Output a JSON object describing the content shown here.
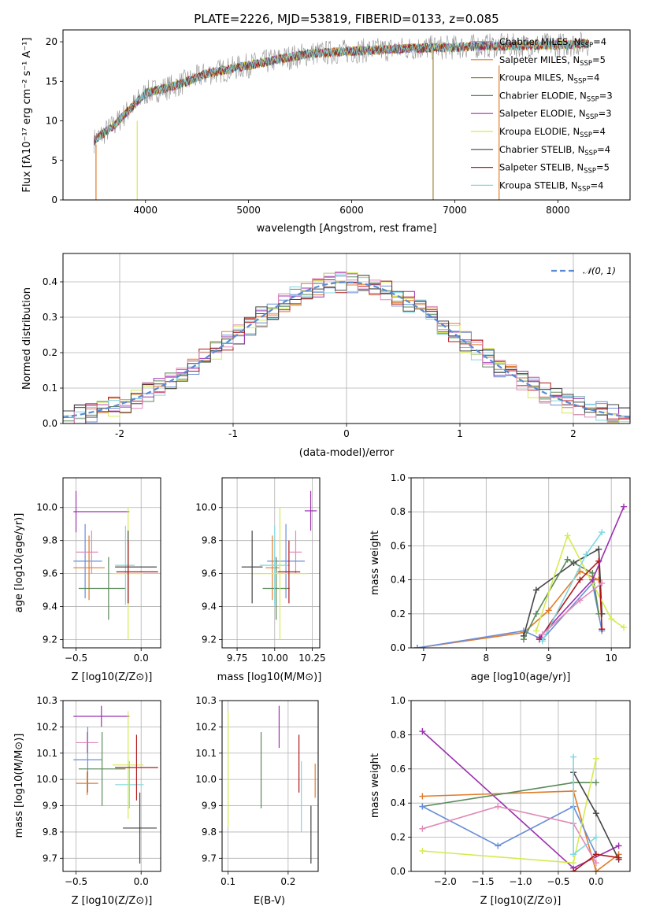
{
  "figure": {
    "title": "PLATE=2226, MJD=53819, FIBERID=0133, z=0.085"
  },
  "colors": {
    "Chabrier MILES": "#6a8fd8",
    "Salpeter MILES": "#e07b2a",
    "Kroupa MILES": "#a08a3a",
    "Chabrier ELODIE": "#5a8a5a",
    "Salpeter ELODIE": "#9b30b0",
    "Kroupa ELODIE": "#d6ea50",
    "Chabrier STELIB": "#444444",
    "Salpeter STELIB": "#b01818",
    "Kroupa STELIB": "#80d8e0",
    "pink": "#e08ab8",
    "normal": "#5a8ad6"
  },
  "chart_data": [
    {
      "id": "spectrum",
      "type": "line",
      "xlabel": "wavelength [Angstrom, rest frame]",
      "ylabel": "Flux [fλ10⁻¹⁷ erg cm⁻² s⁻¹ A⁻¹]",
      "xlim": [
        3200,
        8700
      ],
      "ylim": [
        0,
        21.5
      ],
      "xticks": [
        4000,
        5000,
        6000,
        7000,
        8000
      ],
      "yticks": [
        0,
        5,
        10,
        15,
        20
      ],
      "continuum": {
        "x": [
          3500,
          3700,
          4000,
          4300,
          4600,
          5000,
          5300,
          5600,
          6000,
          6300,
          6600,
          7000,
          7300,
          7600,
          8000,
          8300
        ],
        "y": [
          7.5,
          9.5,
          13.5,
          14.5,
          16.0,
          17.0,
          17.8,
          18.5,
          18.8,
          19.0,
          19.2,
          19.3,
          19.5,
          19.5,
          19.6,
          19.8
        ]
      },
      "legend": [
        {
          "label": "Chabrier MILES, N",
          "sub": "SSP",
          "tail": "=4",
          "color": "#6a8fd8"
        },
        {
          "label": "Salpeter MILES, N",
          "sub": "SSP",
          "tail": "=5",
          "color": "#e07b2a"
        },
        {
          "label": "Kroupa MILES, N",
          "sub": "SSP",
          "tail": "=4",
          "color": "#a08a3a"
        },
        {
          "label": "Chabrier ELODIE, N",
          "sub": "SSP",
          "tail": "=3",
          "color": "#5a8a5a"
        },
        {
          "label": "Salpeter ELODIE, N",
          "sub": "SSP",
          "tail": "=3",
          "color": "#9b30b0"
        },
        {
          "label": "Kroupa ELODIE, N",
          "sub": "SSP",
          "tail": "=4",
          "color": "#d6ea50"
        },
        {
          "label": "Chabrier STELIB, N",
          "sub": "SSP",
          "tail": "=4",
          "color": "#444444"
        },
        {
          "label": "Salpeter STELIB, N",
          "sub": "SSP",
          "tail": "=5",
          "color": "#b01818"
        },
        {
          "label": "Kroupa STELIB, N",
          "sub": "SSP",
          "tail": "=4",
          "color": "#80d8e0"
        }
      ],
      "spikes": [
        {
          "x": 3520,
          "y0": 0,
          "y1": 7,
          "color": "#e07b2a"
        },
        {
          "x": 3920,
          "y0": 0,
          "y1": 10,
          "color": "#d6ea50"
        },
        {
          "x": 6790,
          "y0": 0,
          "y1": 19,
          "color": "#a08a3a"
        },
        {
          "x": 7430,
          "y0": 0,
          "y1": 17,
          "color": "#e07b2a"
        }
      ]
    },
    {
      "id": "residuals",
      "type": "histogram",
      "xlabel": "(data-model)/error",
      "ylabel": "Normed distribution",
      "xlim": [
        -2.5,
        2.5
      ],
      "ylim": [
        0,
        0.48
      ],
      "xticks": [
        -2,
        -1,
        0,
        1,
        2
      ],
      "yticks": [
        0.0,
        0.1,
        0.2,
        0.3,
        0.4
      ],
      "legend_label": "𝒩(0, 1)",
      "grid": true
    },
    {
      "id": "age_vs_Z",
      "type": "errorbar",
      "xlabel": "Z [log10(Z/Z⊙)]",
      "ylabel": "age  [log10(age/yr)]",
      "xlim": [
        -0.6,
        0.15
      ],
      "ylim": [
        9.15,
        10.18
      ],
      "xticks": [
        -0.5,
        0.0
      ],
      "xtick_labels": [
        "−0.5",
        "0.0"
      ],
      "yticks": [
        9.2,
        9.4,
        9.6,
        9.8,
        10.0
      ],
      "points": [
        {
          "x": -0.3,
          "y": 9.1,
          "c": "#9b30b0",
          "xe": [
            -0.52,
            -0.09
          ],
          "ye": [
            9.1,
            9.1
          ],
          "ex": 0,
          "ey": 0
        },
        {
          "x": -0.5,
          "y": 10.1,
          "c": "#9b30b0",
          "xe": [
            -0.52,
            -0.09
          ],
          "ye": [
            9.85,
            10.1
          ]
        },
        {
          "x": -0.43,
          "y": 9.75,
          "c": "#6a8fd8",
          "xe": [
            -0.52,
            -0.3
          ],
          "ye": [
            9.45,
            9.9
          ]
        },
        {
          "x": -0.38,
          "y": 9.68,
          "c": "#e08ab8",
          "xe": [
            -0.5,
            -0.33
          ],
          "ye": [
            9.6,
            9.86
          ]
        },
        {
          "x": -0.4,
          "y": 9.56,
          "c": "#e07b2a",
          "xe": [
            -0.52,
            -0.28
          ],
          "ye": [
            9.44,
            9.83
          ]
        },
        {
          "x": -0.25,
          "y": 9.54,
          "c": "#5a8a5a",
          "xe": [
            -0.48,
            -0.12
          ],
          "ye": [
            9.32,
            9.7
          ]
        },
        {
          "x": -0.12,
          "y": 9.61,
          "c": "#80d8e0",
          "xe": [
            -0.2,
            -0.05
          ],
          "ye": [
            9.41,
            9.89
          ]
        },
        {
          "x": -0.1,
          "y": 9.7,
          "c": "#d6ea50",
          "xe": [
            -0.22,
            0.02
          ],
          "ye": [
            9.2,
            10.0
          ]
        },
        {
          "x": -0.1,
          "y": 9.57,
          "c": "#444444",
          "xe": [
            -0.2,
            0.12
          ],
          "ye": [
            9.42,
            9.86
          ]
        },
        {
          "x": -0.1,
          "y": 9.61,
          "c": "#b01818",
          "xe": [
            -0.19,
            0.13
          ],
          "ye": [
            9.42,
            9.8
          ]
        }
      ]
    },
    {
      "id": "age_vs_mass",
      "type": "errorbar",
      "xlabel": "mass [log10(M/M⊙)]",
      "xlim": [
        9.65,
        10.3
      ],
      "ylim": [
        9.15,
        10.18
      ],
      "xticks": [
        9.75,
        10.0,
        10.25
      ],
      "xtick_labels": [
        "9.75",
        "10.00",
        "10.25"
      ],
      "yticks": [
        9.2,
        9.4,
        9.6,
        9.8,
        10.0
      ],
      "points": [
        {
          "c": "#9b30b0",
          "xe": [
            10.2,
            10.28
          ],
          "ye": [
            9.86,
            10.1
          ]
        },
        {
          "c": "#e08ab8",
          "xe": [
            10.1,
            10.18
          ],
          "ye": [
            9.6,
            9.86
          ]
        },
        {
          "c": "#6a8fd8",
          "xe": [
            9.95,
            10.2
          ],
          "ye": [
            9.45,
            9.9
          ]
        },
        {
          "c": "#e07b2a",
          "xe": [
            9.94,
            10.03
          ],
          "ye": [
            9.44,
            9.83
          ]
        },
        {
          "c": "#5a8a5a",
          "xe": [
            9.92,
            10.1
          ],
          "ye": [
            9.32,
            9.7
          ]
        },
        {
          "c": "#80d8e0",
          "xe": [
            9.9,
            10.1
          ],
          "ye": [
            9.41,
            9.89
          ]
        },
        {
          "c": "#d6ea50",
          "xe": [
            9.85,
            10.22
          ],
          "ye": [
            9.2,
            10.0
          ]
        },
        {
          "c": "#444444",
          "xe": [
            9.78,
            9.92
          ],
          "ye": [
            9.42,
            9.86
          ]
        },
        {
          "c": "#b01818",
          "xe": [
            10.02,
            10.17
          ],
          "ye": [
            9.42,
            9.8
          ]
        }
      ]
    },
    {
      "id": "weight_vs_age",
      "type": "line",
      "xlabel": "age  [log10(age/yr)]",
      "ylabel": "mass weight",
      "xlim": [
        6.8,
        10.3
      ],
      "ylim": [
        0,
        1.0
      ],
      "xticks": [
        7,
        8,
        9,
        10
      ],
      "yticks": [
        0.0,
        0.2,
        0.4,
        0.6,
        0.8,
        1.0
      ],
      "series": [
        {
          "c": "#e07b2a",
          "x": [
            6.9,
            8.6,
            9.0,
            9.5,
            9.8
          ],
          "y": [
            0.0,
            0.09,
            0.22,
            0.45,
            0.4
          ]
        },
        {
          "c": "#6a8fd8",
          "x": [
            6.9,
            8.6,
            8.9,
            9.7,
            9.85
          ],
          "y": [
            0.0,
            0.1,
            0.05,
            0.38,
            0.1
          ]
        },
        {
          "c": "#444444",
          "x": [
            8.6,
            8.8,
            9.4,
            9.8,
            9.85
          ],
          "y": [
            0.07,
            0.34,
            0.5,
            0.58,
            0.2
          ]
        },
        {
          "c": "#5a8a5a",
          "x": [
            8.6,
            8.8,
            9.3,
            9.7,
            9.8
          ],
          "y": [
            0.05,
            0.2,
            0.52,
            0.44,
            0.2
          ]
        },
        {
          "c": "#d6ea50",
          "x": [
            8.8,
            9.3,
            9.7,
            10.0,
            10.2
          ],
          "y": [
            0.1,
            0.66,
            0.38,
            0.17,
            0.12
          ]
        },
        {
          "c": "#b01818",
          "x": [
            8.85,
            9.5,
            9.8,
            9.85
          ],
          "y": [
            0.05,
            0.4,
            0.51,
            0.11
          ]
        },
        {
          "c": "#9b30b0",
          "x": [
            8.85,
            9.7,
            10.2
          ],
          "y": [
            0.06,
            0.4,
            0.83
          ]
        },
        {
          "c": "#80d8e0",
          "x": [
            8.9,
            9.6,
            9.85
          ],
          "y": [
            0.04,
            0.55,
            0.68
          ]
        },
        {
          "c": "#e08ab8",
          "x": [
            8.9,
            9.5,
            9.85
          ],
          "y": [
            0.08,
            0.28,
            0.38
          ]
        }
      ]
    },
    {
      "id": "mass_vs_Z",
      "type": "errorbar",
      "xlabel": "Z [log10(Z/Z⊙)]",
      "ylabel": "mass [log10(M/M⊙)]",
      "xlim": [
        -0.6,
        0.15
      ],
      "ylim": [
        9.65,
        10.3
      ],
      "xticks": [
        -0.5,
        0.0
      ],
      "xtick_labels": [
        "−0.5",
        "0.0"
      ],
      "yticks": [
        9.7,
        9.8,
        9.9,
        10.0,
        10.1,
        10.2,
        10.3
      ],
      "points": [
        {
          "c": "#9b30b0",
          "xe": [
            -0.52,
            -0.09
          ],
          "ye": [
            10.2,
            10.28
          ]
        },
        {
          "c": "#e08ab8",
          "xe": [
            -0.5,
            -0.33
          ],
          "ye": [
            10.1,
            10.18
          ]
        },
        {
          "c": "#6a8fd8",
          "xe": [
            -0.52,
            -0.3
          ],
          "ye": [
            9.95,
            10.2
          ]
        },
        {
          "c": "#e07b2a",
          "xe": [
            -0.5,
            -0.33
          ],
          "ye": [
            9.94,
            10.03
          ]
        },
        {
          "c": "#5a8a5a",
          "xe": [
            -0.48,
            -0.12
          ],
          "ye": [
            9.9,
            10.18
          ]
        },
        {
          "c": "#80d8e0",
          "xe": [
            -0.2,
            0.02
          ],
          "ye": [
            9.89,
            10.07
          ]
        },
        {
          "c": "#d6ea50",
          "xe": [
            -0.22,
            0.02
          ],
          "ye": [
            9.85,
            10.26
          ]
        },
        {
          "c": "#444444",
          "xe": [
            -0.14,
            0.12
          ],
          "ye": [
            9.68,
            9.95
          ]
        },
        {
          "c": "#b01818",
          "xe": [
            -0.2,
            0.13
          ],
          "ye": [
            9.92,
            10.17
          ]
        }
      ]
    },
    {
      "id": "mass_vs_ebv",
      "type": "errorbar",
      "xlabel": "E(B-V)",
      "xlim": [
        0.09,
        0.25
      ],
      "ylim": [
        9.65,
        10.3
      ],
      "xticks": [
        0.1,
        0.2
      ],
      "xtick_labels": [
        "0.1",
        "0.2"
      ],
      "yticks": [
        9.7,
        9.8,
        9.9,
        10.0,
        10.1,
        10.2,
        10.3
      ],
      "points": [
        {
          "c": "#d6ea50",
          "x": 0.1,
          "ye": [
            9.82,
            10.26
          ]
        },
        {
          "c": "#5a8a5a",
          "x": 0.155,
          "ye": [
            9.89,
            10.18
          ]
        },
        {
          "c": "#9b30b0",
          "x": 0.185,
          "ye": [
            10.12,
            10.28
          ]
        },
        {
          "c": "#b01818",
          "x": 0.218,
          "ye": [
            9.95,
            10.17
          ]
        },
        {
          "c": "#80d8e0",
          "x": 0.222,
          "ye": [
            9.8,
            10.07
          ]
        },
        {
          "c": "#444444",
          "x": 0.238,
          "ye": [
            9.68,
            9.9
          ]
        },
        {
          "c": "#e07b2a",
          "x": 0.245,
          "ye": [
            9.93,
            10.06
          ]
        }
      ]
    },
    {
      "id": "weight_vs_Z",
      "type": "line",
      "xlabel": "Z [log10(Z/Z⊙)]",
      "ylabel": "mass weight",
      "xlim": [
        -2.45,
        0.45
      ],
      "ylim": [
        0,
        1.0
      ],
      "xticks": [
        -2.0,
        -1.5,
        -1.0,
        -0.5,
        0.0
      ],
      "xtick_labels": [
        "−2.0",
        "−1.5",
        "−1.0",
        "−0.5",
        "0.0"
      ],
      "yticks": [
        0.0,
        0.2,
        0.4,
        0.6,
        0.8,
        1.0
      ],
      "series": [
        {
          "c": "#9b30b0",
          "x": [
            -2.3,
            -0.3,
            0.3
          ],
          "y": [
            0.82,
            0.02,
            0.15
          ]
        },
        {
          "c": "#e07b2a",
          "x": [
            -2.3,
            -0.3,
            0.0,
            0.3
          ],
          "y": [
            0.44,
            0.47,
            0.0,
            0.1
          ]
        },
        {
          "c": "#5a8a5a",
          "x": [
            -2.3,
            -0.3,
            0.0
          ],
          "y": [
            0.38,
            0.52,
            0.52
          ]
        },
        {
          "c": "#6a8fd8",
          "x": [
            -2.3,
            -1.3,
            -0.3,
            0.0
          ],
          "y": [
            0.38,
            0.15,
            0.38,
            0.1
          ]
        },
        {
          "c": "#e08ab8",
          "x": [
            -2.3,
            -1.3,
            -0.3,
            0.0
          ],
          "y": [
            0.25,
            0.38,
            0.28,
            0.05
          ]
        },
        {
          "c": "#d6ea50",
          "x": [
            -2.3,
            -0.3,
            0.0
          ],
          "y": [
            0.12,
            0.05,
            0.66
          ]
        },
        {
          "c": "#444444",
          "x": [
            -0.3,
            0.0,
            0.3
          ],
          "y": [
            0.58,
            0.34,
            0.07
          ]
        },
        {
          "c": "#80d8e0",
          "x": [
            -0.3,
            -0.3,
            0.0
          ],
          "y": [
            0.67,
            0.1,
            0.2
          ]
        },
        {
          "c": "#b01818",
          "x": [
            -0.3,
            0.0,
            0.3
          ],
          "y": [
            0.0,
            0.1,
            0.08
          ]
        }
      ]
    }
  ]
}
